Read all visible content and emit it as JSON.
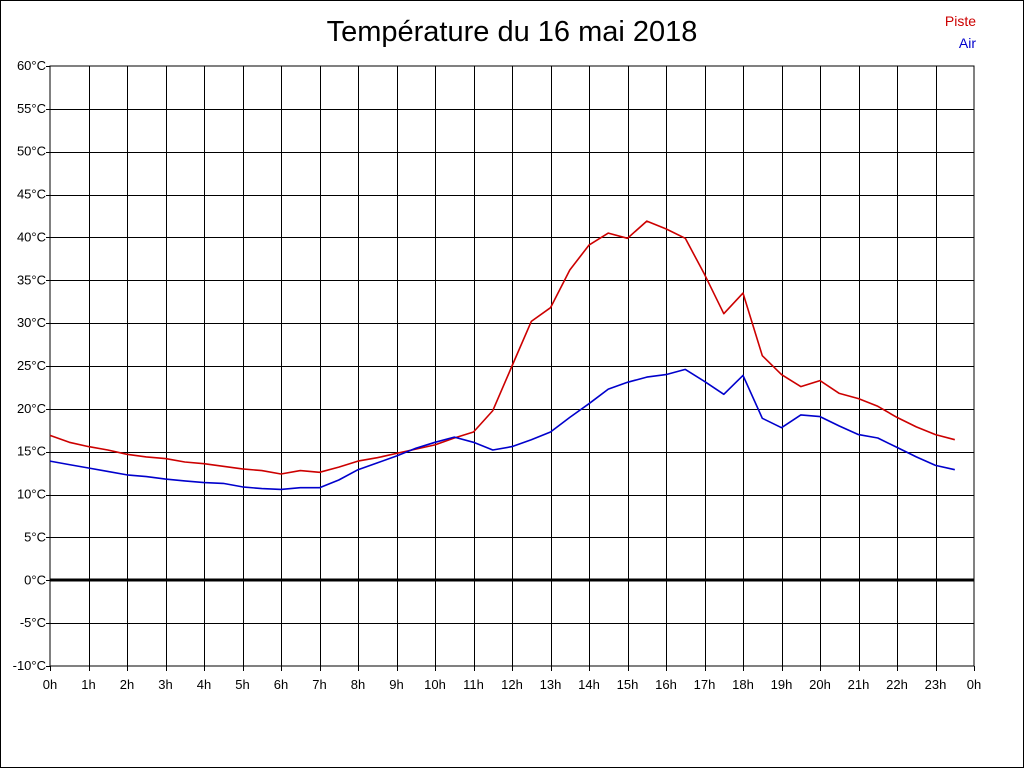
{
  "chart_data": {
    "type": "line",
    "title": "Température du 16 mai 2018",
    "y_ticks": [
      "60°C",
      "55°C",
      "50°C",
      "45°C",
      "40°C",
      "35°C",
      "30°C",
      "25°C",
      "20°C",
      "15°C",
      "10°C",
      "5°C",
      "0°C",
      "-5°C",
      "-10°C"
    ],
    "x_ticks": [
      "0h",
      "1h",
      "2h",
      "3h",
      "4h",
      "5h",
      "6h",
      "7h",
      "8h",
      "9h",
      "10h",
      "11h",
      "12h",
      "13h",
      "14h",
      "15h",
      "16h",
      "17h",
      "18h",
      "19h",
      "20h",
      "21h",
      "22h",
      "23h",
      "0h"
    ],
    "ylim": [
      -10,
      60
    ],
    "xlim": [
      0,
      24
    ],
    "grid": true,
    "legend_position": "top-right",
    "x": [
      0,
      0.5,
      1,
      1.5,
      2,
      2.5,
      3,
      3.5,
      4,
      4.5,
      5,
      5.5,
      6,
      6.5,
      7,
      7.5,
      8,
      8.5,
      9,
      9.5,
      10,
      10.5,
      11,
      11.5,
      12,
      12.5,
      13,
      13.5,
      14,
      14.5,
      15,
      15.5,
      16,
      16.5,
      17,
      17.5,
      18,
      18.5,
      19,
      19.5,
      20,
      20.5,
      21,
      21.5,
      22,
      22.5,
      23,
      23.5
    ],
    "series": [
      {
        "name": "Piste",
        "color": "#cc0000",
        "values": [
          16.9,
          16.1,
          15.6,
          15.2,
          14.7,
          14.4,
          14.2,
          13.8,
          13.6,
          13.3,
          13.0,
          12.8,
          12.4,
          12.8,
          12.6,
          13.2,
          13.9,
          14.3,
          14.8,
          15.3,
          15.8,
          16.6,
          17.3,
          19.8,
          25.0,
          30.2,
          31.8,
          36.2,
          39.1,
          40.5,
          39.9,
          41.9,
          41.0,
          39.9,
          35.7,
          31.1,
          33.5,
          26.2,
          24.0,
          22.6,
          23.3,
          21.8,
          21.2,
          20.3,
          19.0,
          17.9,
          17.0,
          16.4
        ]
      },
      {
        "name": "Air",
        "color": "#0000cc",
        "values": [
          13.9,
          13.5,
          13.1,
          12.7,
          12.3,
          12.1,
          11.8,
          11.6,
          11.4,
          11.3,
          10.9,
          10.7,
          10.6,
          10.8,
          10.8,
          11.7,
          12.9,
          13.7,
          14.5,
          15.4,
          16.1,
          16.7,
          16.1,
          15.2,
          15.6,
          16.4,
          17.3,
          19.0,
          20.6,
          22.3,
          23.1,
          23.7,
          24.0,
          24.6,
          23.2,
          21.7,
          23.9,
          18.9,
          17.8,
          19.3,
          19.1,
          18.0,
          17.0,
          16.6,
          15.5,
          14.4,
          13.4,
          12.9
        ]
      }
    ]
  }
}
